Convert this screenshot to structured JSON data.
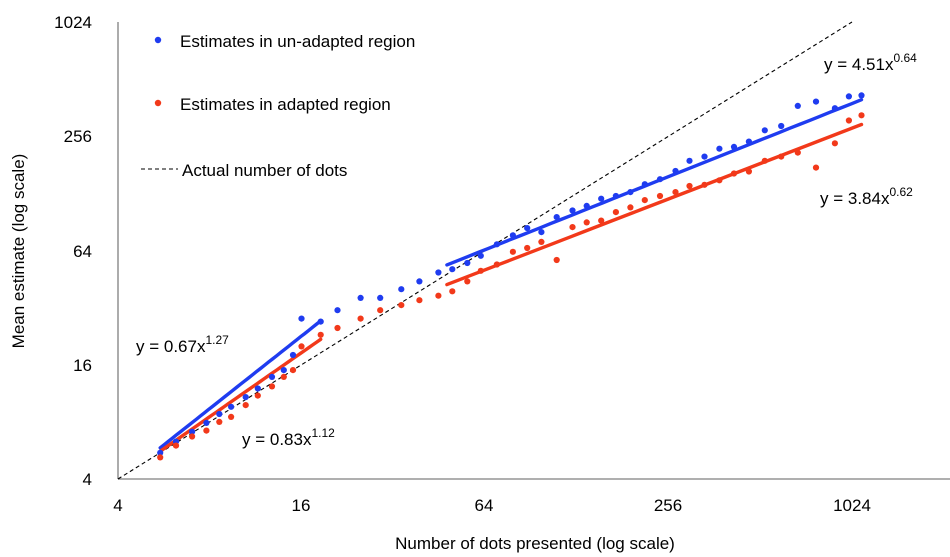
{
  "chart_data": {
    "type": "scatter",
    "xscale": "log2",
    "yscale": "log2",
    "xlim": [
      4,
      1470
    ],
    "ylim": [
      4,
      1024
    ],
    "xticks": [
      4,
      16,
      64,
      256,
      1024
    ],
    "yticks": [
      4,
      16,
      64,
      256,
      1024
    ],
    "xtick_labels": [
      "4",
      "16",
      "64",
      "256",
      "1024"
    ],
    "ytick_labels": [
      "4",
      "16",
      "64",
      "256",
      "1024"
    ],
    "xlabel": "Number of dots presented (log scale)",
    "ylabel": "Mean estimate (log scale)",
    "grid": false,
    "legend_position": "top-left",
    "series": [
      {
        "name": "Estimates in un-adapted region",
        "color": "#1f3cf0",
        "points": [
          [
            5.5,
            5.5
          ],
          [
            6.2,
            6.3
          ],
          [
            7.0,
            7.1
          ],
          [
            7.8,
            7.9
          ],
          [
            8.6,
            8.8
          ],
          [
            9.4,
            9.6
          ],
          [
            10.5,
            10.8
          ],
          [
            11.5,
            12.0
          ],
          [
            12.8,
            13.8
          ],
          [
            14.0,
            15.0
          ],
          [
            15.0,
            18.0
          ],
          [
            16.0,
            28.0
          ],
          [
            18.5,
            27.0
          ],
          [
            21.0,
            31.0
          ],
          [
            25.0,
            36.0
          ],
          [
            29.0,
            36.0
          ],
          [
            34.0,
            40.0
          ],
          [
            39.0,
            44.0
          ],
          [
            45.0,
            49.0
          ],
          [
            50.0,
            51.0
          ],
          [
            56.0,
            55.0
          ],
          [
            62.0,
            60.0
          ],
          [
            70.0,
            69.0
          ],
          [
            79.0,
            77.0
          ],
          [
            88.0,
            84.0
          ],
          [
            98.0,
            80.0
          ],
          [
            110.0,
            96.0
          ],
          [
            124.0,
            104.0
          ],
          [
            138.0,
            110.0
          ],
          [
            154.0,
            120.0
          ],
          [
            172.0,
            124.0
          ],
          [
            192.0,
            130.0
          ],
          [
            214.0,
            143.0
          ],
          [
            240.0,
            152.0
          ],
          [
            270.0,
            168.0
          ],
          [
            300.0,
            190.0
          ],
          [
            336.0,
            200.0
          ],
          [
            376.0,
            220.0
          ],
          [
            420.0,
            225.0
          ],
          [
            470.0,
            240.0
          ],
          [
            530.0,
            275.0
          ],
          [
            600.0,
            290.0
          ],
          [
            680.0,
            370.0
          ],
          [
            780.0,
            390.0
          ],
          [
            900.0,
            360.0
          ],
          [
            1000.0,
            415.0
          ],
          [
            1100.0,
            420.0
          ]
        ]
      },
      {
        "name": "Estimates in adapted region",
        "color": "#f2391a",
        "points": [
          [
            5.5,
            5.2
          ],
          [
            6.2,
            6.0
          ],
          [
            7.0,
            6.7
          ],
          [
            7.8,
            7.2
          ],
          [
            8.6,
            8.0
          ],
          [
            9.4,
            8.5
          ],
          [
            10.5,
            9.8
          ],
          [
            11.5,
            11.0
          ],
          [
            12.8,
            12.3
          ],
          [
            14.0,
            13.8
          ],
          [
            15.0,
            15.0
          ],
          [
            16.0,
            20.0
          ],
          [
            18.5,
            23.0
          ],
          [
            21.0,
            25.0
          ],
          [
            25.0,
            28.0
          ],
          [
            29.0,
            31.0
          ],
          [
            34.0,
            33.0
          ],
          [
            39.0,
            35.0
          ],
          [
            45.0,
            37.0
          ],
          [
            50.0,
            39.0
          ],
          [
            56.0,
            44.0
          ],
          [
            62.0,
            50.0
          ],
          [
            70.0,
            54.0
          ],
          [
            79.0,
            63.0
          ],
          [
            88.0,
            66.0
          ],
          [
            98.0,
            71.0
          ],
          [
            110.0,
            57.0
          ],
          [
            124.0,
            85.0
          ],
          [
            138.0,
            90.0
          ],
          [
            154.0,
            92.0
          ],
          [
            172.0,
            102.0
          ],
          [
            192.0,
            108.0
          ],
          [
            214.0,
            118.0
          ],
          [
            240.0,
            124.0
          ],
          [
            270.0,
            130.0
          ],
          [
            300.0,
            140.0
          ],
          [
            336.0,
            142.0
          ],
          [
            376.0,
            150.0
          ],
          [
            420.0,
            163.0
          ],
          [
            470.0,
            167.0
          ],
          [
            530.0,
            190.0
          ],
          [
            600.0,
            200.0
          ],
          [
            680.0,
            210.0
          ],
          [
            780.0,
            175.0
          ],
          [
            900.0,
            235.0
          ],
          [
            1000.0,
            310.0
          ],
          [
            1100.0,
            330.0
          ]
        ]
      },
      {
        "name": "Actual number of dots",
        "style": "dashed",
        "color": "#000000",
        "line": [
          [
            4,
            4
          ],
          [
            1024,
            1024
          ]
        ]
      }
    ],
    "fits": [
      {
        "series": "Estimates in un-adapted region",
        "a": 0.67,
        "b": 1.27,
        "x_range": [
          5.5,
          18.5
        ],
        "label_base": "y = 0.67x",
        "label_exp": "1.27"
      },
      {
        "series": "Estimates in adapted region",
        "a": 0.83,
        "b": 1.12,
        "x_range": [
          5.5,
          18.5
        ],
        "label_base": "y = 0.83x",
        "label_exp": "1.12"
      },
      {
        "series": "Estimates in un-adapted region",
        "a": 4.51,
        "b": 0.64,
        "x_range": [
          48,
          1100
        ],
        "label_base": "y = 4.51x",
        "label_exp": "0.64"
      },
      {
        "series": "Estimates in adapted region",
        "a": 3.84,
        "b": 0.62,
        "x_range": [
          48,
          1100
        ],
        "label_base": "y = 3.84x",
        "label_exp": "0.62"
      }
    ]
  }
}
